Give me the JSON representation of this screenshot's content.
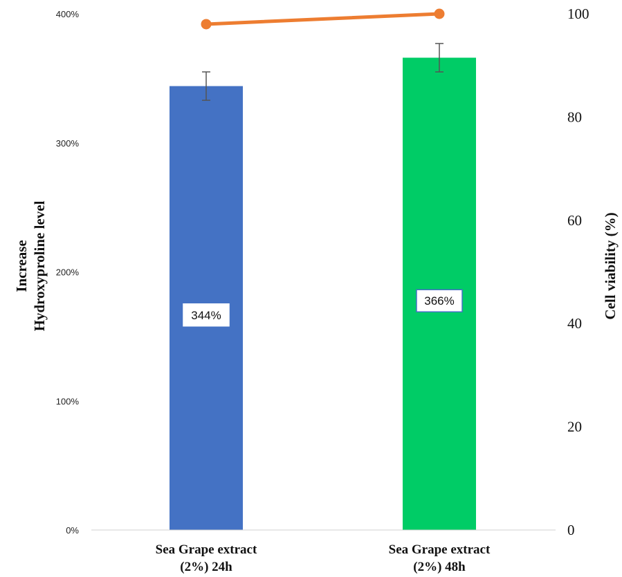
{
  "chart_data": {
    "type": "bar",
    "categories": [
      [
        "Sea Grape extract",
        "(2%) 24h"
      ],
      [
        "Sea Grape extract",
        "(2%) 48h"
      ]
    ],
    "bars": {
      "values": [
        344,
        366
      ],
      "errors": [
        11,
        11
      ],
      "data_labels": [
        "344%",
        "366%"
      ],
      "colors": [
        "#4472C4",
        "#00CC66"
      ]
    },
    "line": {
      "values": [
        98,
        100
      ],
      "color": "#ED7D31"
    },
    "y_left": {
      "label_lines": [
        "Increase",
        "Hydroxyproline level"
      ],
      "ylim": [
        0,
        400
      ],
      "ticks": [
        0,
        100,
        200,
        300,
        400
      ],
      "tick_labels": [
        "0%",
        "100%",
        "200%",
        "300%",
        "400%"
      ]
    },
    "y_right": {
      "label": "Cell viability (%)",
      "ylim": [
        0,
        100
      ],
      "ticks": [
        0,
        20,
        40,
        60,
        80,
        100
      ],
      "tick_labels": [
        "0",
        "20",
        "40",
        "60",
        "80",
        "100"
      ]
    },
    "grid": false,
    "legend": "none"
  }
}
